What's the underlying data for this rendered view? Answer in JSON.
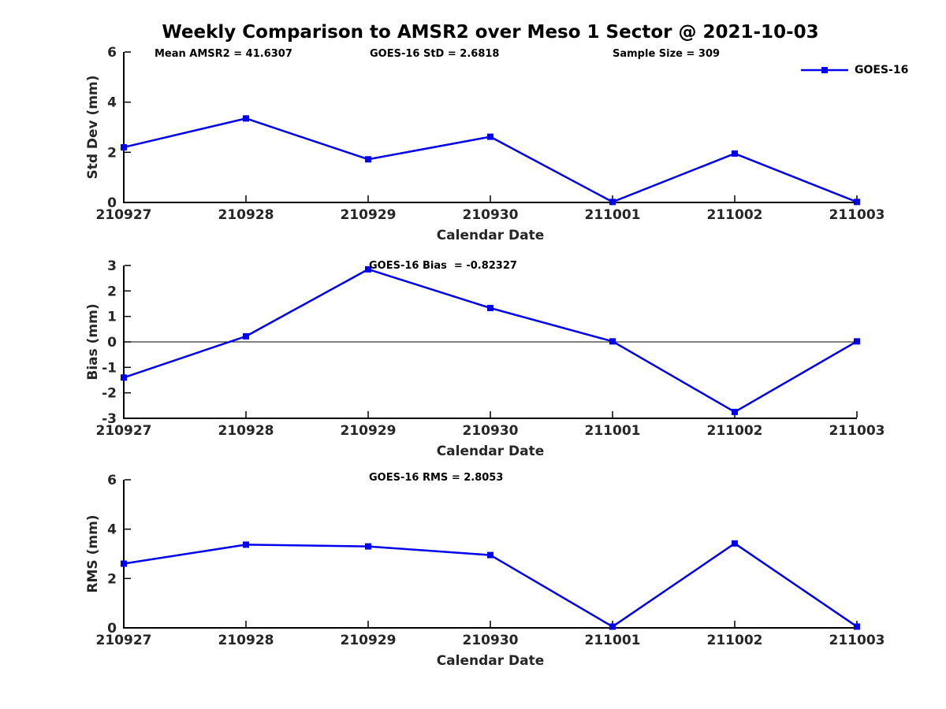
{
  "page_title": "Weekly Comparison to AMSR2 over Meso 1 Sector @ 2021-10-03",
  "colors": {
    "series": "#0000EE",
    "axis": "#000000",
    "text": "#262626",
    "background": "#FFFFFF"
  },
  "legend": {
    "label": "GOES-16",
    "position": "top-right"
  },
  "chart_data": [
    {
      "type": "line",
      "name": "std-dev",
      "xlabel": "Calendar Date",
      "ylabel": "Std Dev (mm)",
      "categories": [
        "210927",
        "210928",
        "210929",
        "210930",
        "211001",
        "211002",
        "211003"
      ],
      "series": [
        {
          "name": "GOES-16",
          "values": [
            2.2,
            3.35,
            1.72,
            2.62,
            0.02,
            1.95,
            0.02
          ]
        }
      ],
      "ylim": [
        0,
        6
      ],
      "yticks": [
        0,
        2,
        4,
        6
      ],
      "grid": false,
      "marker": "square",
      "zero_line": false,
      "legend_position": "top-right",
      "annotations": [
        "Mean AMSR2 = 41.6307",
        "GOES-16 StD = 2.6818",
        "Sample Size = 309"
      ]
    },
    {
      "type": "line",
      "name": "bias",
      "xlabel": "Calendar Date",
      "ylabel": "Bias (mm)",
      "categories": [
        "210927",
        "210928",
        "210929",
        "210930",
        "211001",
        "211002",
        "211003"
      ],
      "series": [
        {
          "name": "GOES-16",
          "values": [
            -1.4,
            0.22,
            2.85,
            1.33,
            0.02,
            -2.75,
            0.02
          ]
        }
      ],
      "ylim": [
        -3,
        3
      ],
      "yticks": [
        -3,
        -2,
        -1,
        0,
        1,
        2,
        3
      ],
      "grid": false,
      "marker": "square",
      "zero_line": true,
      "annotation": "GOES-16 Bias  = -0.82327"
    },
    {
      "type": "line",
      "name": "rms",
      "xlabel": "Calendar Date",
      "ylabel": "RMS (mm)",
      "categories": [
        "210927",
        "210928",
        "210929",
        "210930",
        "211001",
        "211002",
        "211003"
      ],
      "series": [
        {
          "name": "GOES-16",
          "values": [
            2.6,
            3.37,
            3.3,
            2.95,
            0.05,
            3.42,
            0.05
          ]
        }
      ],
      "ylim": [
        0,
        6
      ],
      "yticks": [
        0,
        2,
        4,
        6
      ],
      "grid": false,
      "marker": "square",
      "zero_line": false,
      "annotation": "GOES-16 RMS = 2.8053"
    }
  ]
}
